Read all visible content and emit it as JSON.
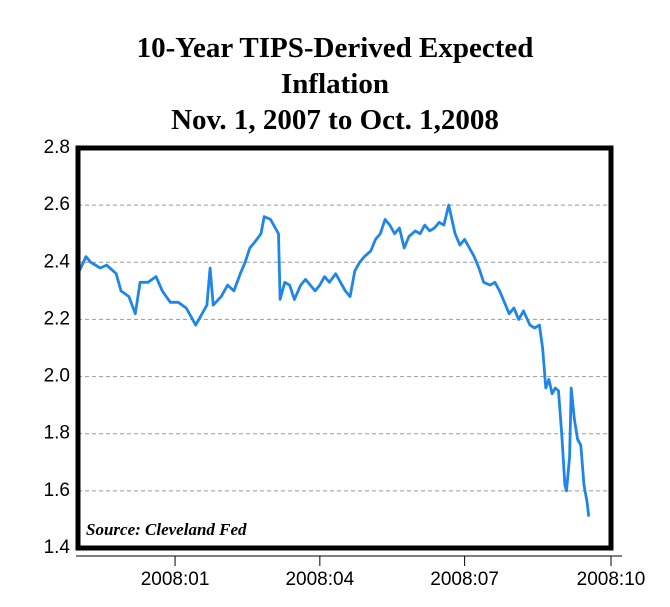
{
  "chart_data": {
    "type": "line",
    "title": "10-Year TIPS-Derived Expected Inflation",
    "subtitle": "Nov. 1, 2007 to Oct. 1,2008",
    "annotation": "Source: Cleveland Fed",
    "grid": true,
    "series": [
      {
        "name": "10-Year TIPS-Derived Expected Inflation",
        "color": "#1e86e8",
        "x": [
          "2007-11-01",
          "2007-11-06",
          "2007-11-09",
          "2007-11-15",
          "2007-11-19",
          "2007-11-25",
          "2007-11-28",
          "2007-12-03",
          "2007-12-07",
          "2007-12-10",
          "2007-12-15",
          "2007-12-20",
          "2007-12-24",
          "2007-12-29",
          "2008-01-03",
          "2008-01-08",
          "2008-01-12",
          "2008-01-14",
          "2008-01-18",
          "2008-01-21",
          "2008-01-23",
          "2008-01-25",
          "2008-01-30",
          "2008-02-03",
          "2008-02-07",
          "2008-02-11",
          "2008-02-14",
          "2008-02-17",
          "2008-02-20",
          "2008-02-24",
          "2008-02-26",
          "2008-03-01",
          "2008-03-04",
          "2008-03-06",
          "2008-03-07",
          "2008-03-10",
          "2008-03-13",
          "2008-03-16",
          "2008-03-20",
          "2008-03-23",
          "2008-03-26",
          "2008-03-29",
          "2008-04-01",
          "2008-04-04",
          "2008-04-07",
          "2008-04-11",
          "2008-04-14",
          "2008-04-17",
          "2008-04-20",
          "2008-04-23",
          "2008-04-26",
          "2008-04-29",
          "2008-05-03",
          "2008-05-06",
          "2008-05-09",
          "2008-05-12",
          "2008-05-15",
          "2008-05-18",
          "2008-05-21",
          "2008-05-24",
          "2008-05-27",
          "2008-05-31",
          "2008-06-03",
          "2008-06-06",
          "2008-06-09",
          "2008-06-12",
          "2008-06-15",
          "2008-06-18",
          "2008-06-21",
          "2008-06-25",
          "2008-06-28",
          "2008-07-01",
          "2008-07-04",
          "2008-07-07",
          "2008-07-10",
          "2008-07-13",
          "2008-07-17",
          "2008-07-20",
          "2008-07-23",
          "2008-07-26",
          "2008-07-29",
          "2008-08-01",
          "2008-08-04",
          "2008-08-07",
          "2008-08-11",
          "2008-08-14",
          "2008-08-17",
          "2008-08-19",
          "2008-08-21",
          "2008-08-23",
          "2008-08-25",
          "2008-08-27",
          "2008-08-29",
          "2008-08-31",
          "2008-09-02",
          "2008-09-03",
          "2008-09-05",
          "2008-09-06",
          "2008-09-08",
          "2008-09-10",
          "2008-09-12",
          "2008-09-14",
          "2008-09-16",
          "2008-09-17"
        ],
        "values": [
          2.36,
          2.42,
          2.4,
          2.38,
          2.39,
          2.36,
          2.3,
          2.28,
          2.22,
          2.33,
          2.33,
          2.35,
          2.3,
          2.26,
          2.26,
          2.24,
          2.2,
          2.18,
          2.22,
          2.25,
          2.38,
          2.25,
          2.28,
          2.32,
          2.3,
          2.36,
          2.4,
          2.45,
          2.47,
          2.5,
          2.56,
          2.55,
          2.52,
          2.5,
          2.27,
          2.33,
          2.32,
          2.27,
          2.32,
          2.34,
          2.32,
          2.3,
          2.32,
          2.35,
          2.33,
          2.36,
          2.33,
          2.3,
          2.28,
          2.37,
          2.4,
          2.42,
          2.44,
          2.48,
          2.5,
          2.55,
          2.53,
          2.5,
          2.52,
          2.45,
          2.49,
          2.51,
          2.5,
          2.53,
          2.51,
          2.52,
          2.54,
          2.53,
          2.6,
          2.5,
          2.46,
          2.48,
          2.45,
          2.42,
          2.38,
          2.33,
          2.32,
          2.33,
          2.3,
          2.26,
          2.22,
          2.24,
          2.2,
          2.23,
          2.18,
          2.17,
          2.18,
          2.1,
          1.96,
          1.99,
          1.94,
          1.96,
          1.95,
          1.8,
          1.62,
          1.6,
          1.72,
          1.96,
          1.85,
          1.78,
          1.76,
          1.62,
          1.56,
          1.51
        ]
      }
    ],
    "xlim": [
      "2007-11-01",
      "2008-10-01"
    ],
    "xticks": [
      {
        "value": "2008-01-01",
        "label": "2008:01"
      },
      {
        "value": "2008-04-01",
        "label": "2008:04"
      },
      {
        "value": "2008-07-01",
        "label": "2008:07"
      },
      {
        "value": "2008-10-01",
        "label": "2008:10"
      }
    ],
    "ylim": [
      1.4,
      2.8
    ],
    "yticks": [
      1.4,
      1.6,
      1.8,
      {
        "value": 2,
        "label": "2.0"
      },
      2.2,
      2.4,
      2.6,
      2.8
    ]
  }
}
